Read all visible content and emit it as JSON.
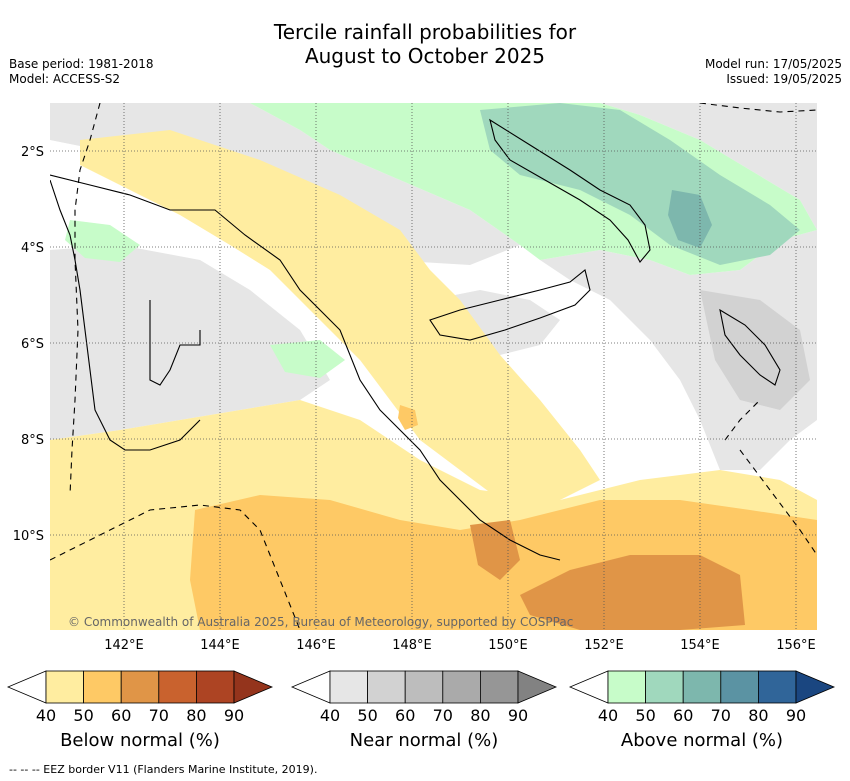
{
  "title": {
    "line1": "Tercile rainfall probabilities for",
    "line2": "August to October 2025"
  },
  "meta_left": {
    "base_period": "Base period: 1981-2018",
    "model": "Model: ACCESS-S2"
  },
  "meta_right": {
    "model_run": "Model run: 17/05/2025",
    "issued": "Issued: 19/05/2025"
  },
  "map": {
    "lat_labels": [
      "2°S",
      "4°S",
      "6°S",
      "8°S",
      "10°S"
    ],
    "lon_labels": [
      "142°E",
      "144°E",
      "146°E",
      "148°E",
      "150°E",
      "152°E",
      "154°E",
      "156°E"
    ],
    "copyright": "© Commonwealth of Australia 2025, Bureau of Meteorology, supported by COSPPac",
    "colors": {
      "below": [
        "#ffeda0",
        "#fec965",
        "#e09547",
        "#c9622e",
        "#ad4423",
        "#94341c"
      ],
      "near": [
        "#e6e6e6",
        "#d2d2d2",
        "#bdbdbd",
        "#aaaaaa",
        "#969696",
        "#828282"
      ],
      "above": [
        "#c7fcc9",
        "#a0d8bd",
        "#7db7ad",
        "#5b93a3",
        "#306599",
        "#1a4680"
      ]
    }
  },
  "colorbars": {
    "ticks": [
      "40",
      "50",
      "60",
      "70",
      "80",
      "90"
    ],
    "below_label": "Below normal (%)",
    "near_label": "Near normal (%)",
    "above_label": "Above normal (%)"
  },
  "footer": "--  --  -- EEZ border V11 (Flanders Marine Institute, 2019)."
}
